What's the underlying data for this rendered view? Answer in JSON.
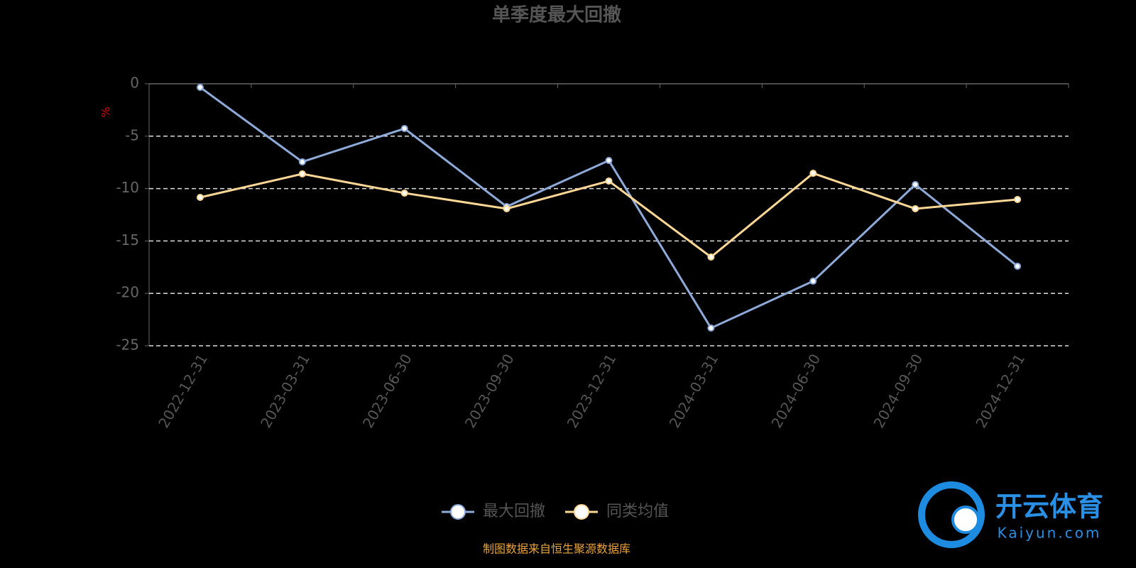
{
  "chart_data": {
    "type": "line",
    "title": "单季度最大回撤",
    "y_label": "%",
    "categories": [
      "2022-12-31",
      "2023-03-31",
      "2023-06-30",
      "2023-09-30",
      "2023-12-31",
      "2024-03-31",
      "2024-06-30",
      "2024-09-30",
      "2024-12-31"
    ],
    "series": [
      {
        "name": "最大回撤",
        "color": "#8eaad8",
        "values": [
          -0.34,
          -7.45,
          -4.27,
          -11.72,
          -7.32,
          -23.31,
          -18.83,
          -9.62,
          -17.41
        ]
      },
      {
        "name": "同类均值",
        "color": "#fdd796",
        "values": [
          -10.84,
          -8.6,
          -10.43,
          -11.92,
          -9.28,
          -16.53,
          -8.54,
          -11.92,
          -11.04
        ]
      }
    ],
    "ylim": [
      -25,
      0
    ],
    "yticks": [
      0,
      -5,
      -10,
      -15,
      -20,
      -25
    ],
    "grid": true,
    "legend_position": "bottom",
    "source": "制图数据来自恒生聚源数据库"
  },
  "watermark": {
    "brand": "开云体育",
    "site": "Kaiyun.com"
  }
}
